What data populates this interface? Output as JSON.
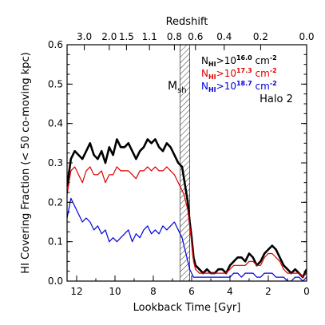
{
  "chart_data": {
    "type": "line",
    "xlabel": "Lookback Time [Gyr]",
    "ylabel": "HI Covering Fraction (< 50 co-moving kpc)",
    "top_axis_label": "Redshift",
    "xlim": [
      12.5,
      0
    ],
    "ylim": [
      0,
      0.6
    ],
    "x_ticks": [
      12,
      10,
      8,
      6,
      4,
      2,
      0
    ],
    "y_ticks": [
      0.0,
      0.1,
      0.2,
      0.3,
      0.4,
      0.5,
      0.6
    ],
    "x_tick_labels": [
      "12",
      "10",
      "8",
      "6",
      "4",
      "2",
      "0"
    ],
    "y_tick_labels": [
      "0.0",
      "0.1",
      "0.2",
      "0.3",
      "0.4",
      "0.5",
      "0.6"
    ],
    "top_ticks": [
      {
        "label": "3.0",
        "t": 11.6
      },
      {
        "label": "2.0",
        "t": 10.3
      },
      {
        "label": "1.5",
        "t": 9.4
      },
      {
        "label": "1.1",
        "t": 8.2
      },
      {
        "label": "0.8",
        "t": 6.9
      },
      {
        "label": "0.6",
        "t": 5.8
      },
      {
        "label": "0.4",
        "t": 4.3
      },
      {
        "label": "0.2",
        "t": 2.4
      },
      {
        "label": "0.0",
        "t": 0.0
      }
    ],
    "band": {
      "label": "Msh",
      "label_main": "M",
      "label_sub": "sh",
      "x_range": [
        6.6,
        6.1
      ]
    },
    "annotation": "Halo 2",
    "legend_placement": "top-right",
    "series": [
      {
        "name": "NHI>10^16.0 cm^-2",
        "legend_pre": "N",
        "legend_sub": "HI",
        "legend_mid": ">10",
        "legend_exp": "16.0",
        "legend_unit": "cm",
        "legend_unit_exp": "-2",
        "color": "#000000",
        "x": [
          12.5,
          12.3,
          12.1,
          11.9,
          11.7,
          11.5,
          11.3,
          11.1,
          10.9,
          10.7,
          10.5,
          10.3,
          10.1,
          9.9,
          9.7,
          9.5,
          9.3,
          9.1,
          8.9,
          8.7,
          8.5,
          8.3,
          8.1,
          7.9,
          7.7,
          7.5,
          7.3,
          7.1,
          6.9,
          6.7,
          6.5,
          6.4,
          6.3,
          6.2,
          6.1,
          6.0,
          5.9,
          5.8,
          5.6,
          5.4,
          5.2,
          5.0,
          4.8,
          4.6,
          4.4,
          4.2,
          4.0,
          3.8,
          3.6,
          3.4,
          3.2,
          3.0,
          2.8,
          2.6,
          2.4,
          2.2,
          2.0,
          1.8,
          1.6,
          1.4,
          1.2,
          1.0,
          0.8,
          0.6,
          0.4,
          0.2,
          0.0
        ],
        "y": [
          0.24,
          0.31,
          0.33,
          0.32,
          0.31,
          0.33,
          0.35,
          0.32,
          0.31,
          0.33,
          0.3,
          0.34,
          0.32,
          0.36,
          0.34,
          0.34,
          0.35,
          0.33,
          0.31,
          0.33,
          0.34,
          0.36,
          0.35,
          0.36,
          0.34,
          0.33,
          0.35,
          0.34,
          0.32,
          0.3,
          0.29,
          0.26,
          0.23,
          0.2,
          0.15,
          0.11,
          0.06,
          0.04,
          0.03,
          0.02,
          0.03,
          0.02,
          0.02,
          0.03,
          0.03,
          0.02,
          0.04,
          0.05,
          0.06,
          0.06,
          0.05,
          0.07,
          0.06,
          0.04,
          0.05,
          0.07,
          0.08,
          0.09,
          0.08,
          0.06,
          0.04,
          0.03,
          0.02,
          0.03,
          0.02,
          0.01,
          0.03
        ]
      },
      {
        "name": "NHI>10^17.3 cm^-2",
        "legend_pre": "N",
        "legend_sub": "HI",
        "legend_mid": ">10",
        "legend_exp": "17.3",
        "legend_unit": "cm",
        "legend_unit_exp": "-2",
        "color": "#e00000",
        "x": [
          12.5,
          12.3,
          12.1,
          11.9,
          11.7,
          11.5,
          11.3,
          11.1,
          10.9,
          10.7,
          10.5,
          10.3,
          10.1,
          9.9,
          9.7,
          9.5,
          9.3,
          9.1,
          8.9,
          8.7,
          8.5,
          8.3,
          8.1,
          7.9,
          7.7,
          7.5,
          7.3,
          7.1,
          6.9,
          6.7,
          6.5,
          6.4,
          6.3,
          6.2,
          6.1,
          6.0,
          5.9,
          5.8,
          5.6,
          5.4,
          5.2,
          5.0,
          4.8,
          4.6,
          4.4,
          4.2,
          4.0,
          3.8,
          3.6,
          3.4,
          3.2,
          3.0,
          2.8,
          2.6,
          2.4,
          2.2,
          2.0,
          1.8,
          1.6,
          1.4,
          1.2,
          1.0,
          0.8,
          0.6,
          0.4,
          0.2,
          0.0
        ],
        "y": [
          0.22,
          0.28,
          0.29,
          0.27,
          0.25,
          0.28,
          0.29,
          0.27,
          0.27,
          0.28,
          0.25,
          0.27,
          0.27,
          0.29,
          0.28,
          0.28,
          0.28,
          0.27,
          0.26,
          0.28,
          0.28,
          0.29,
          0.28,
          0.29,
          0.28,
          0.28,
          0.29,
          0.28,
          0.27,
          0.25,
          0.23,
          0.22,
          0.2,
          0.18,
          0.14,
          0.1,
          0.05,
          0.03,
          0.02,
          0.02,
          0.02,
          0.02,
          0.02,
          0.02,
          0.02,
          0.02,
          0.03,
          0.04,
          0.04,
          0.04,
          0.04,
          0.05,
          0.05,
          0.04,
          0.04,
          0.06,
          0.07,
          0.07,
          0.06,
          0.05,
          0.03,
          0.02,
          0.02,
          0.02,
          0.02,
          0.01,
          0.02
        ]
      },
      {
        "name": "NHI>10^18.7 cm^-2",
        "legend_pre": "N",
        "legend_sub": "HI",
        "legend_mid": ">10",
        "legend_exp": "18.7",
        "legend_unit": "cm",
        "legend_unit_exp": "-2",
        "color": "#0000e0",
        "x": [
          12.5,
          12.3,
          12.1,
          11.9,
          11.7,
          11.5,
          11.3,
          11.1,
          10.9,
          10.7,
          10.5,
          10.3,
          10.1,
          9.9,
          9.7,
          9.5,
          9.3,
          9.1,
          8.9,
          8.7,
          8.5,
          8.3,
          8.1,
          7.9,
          7.7,
          7.5,
          7.3,
          7.1,
          6.9,
          6.7,
          6.5,
          6.4,
          6.3,
          6.2,
          6.1,
          6.0,
          5.9,
          5.8,
          5.6,
          5.4,
          5.2,
          5.0,
          4.8,
          4.6,
          4.4,
          4.2,
          4.0,
          3.8,
          3.6,
          3.4,
          3.2,
          3.0,
          2.8,
          2.6,
          2.4,
          2.2,
          2.0,
          1.8,
          1.6,
          1.4,
          1.2,
          1.0,
          0.8,
          0.6,
          0.4,
          0.2,
          0.0
        ],
        "y": [
          0.16,
          0.21,
          0.19,
          0.17,
          0.15,
          0.16,
          0.15,
          0.13,
          0.14,
          0.12,
          0.13,
          0.1,
          0.11,
          0.1,
          0.11,
          0.12,
          0.13,
          0.1,
          0.12,
          0.11,
          0.13,
          0.14,
          0.12,
          0.13,
          0.12,
          0.14,
          0.13,
          0.14,
          0.15,
          0.13,
          0.11,
          0.09,
          0.07,
          0.05,
          0.03,
          0.02,
          0.01,
          0.01,
          0.01,
          0.01,
          0.01,
          0.01,
          0.01,
          0.01,
          0.01,
          0.01,
          0.01,
          0.02,
          0.02,
          0.01,
          0.02,
          0.02,
          0.02,
          0.01,
          0.01,
          0.02,
          0.02,
          0.02,
          0.01,
          0.01,
          0.01,
          0.0,
          0.0,
          0.01,
          0.01,
          0.0,
          0.01
        ]
      }
    ]
  }
}
